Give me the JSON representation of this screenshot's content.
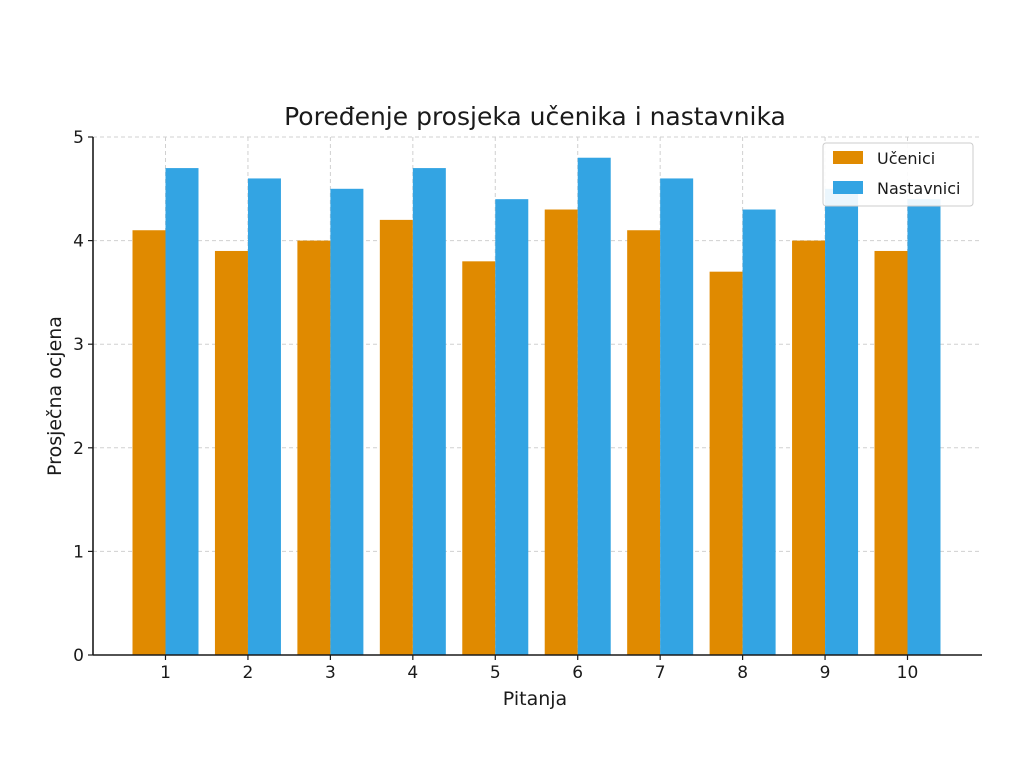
{
  "chart_data": {
    "type": "bar",
    "title": "Poređenje prosjeka učenika i nastavnika",
    "xlabel": "Pitanja",
    "ylabel": "Prosječna ocjena",
    "categories": [
      "1",
      "2",
      "3",
      "4",
      "5",
      "6",
      "7",
      "8",
      "9",
      "10"
    ],
    "series": [
      {
        "name": "Učenici",
        "color": "#E08A00",
        "values": [
          4.1,
          3.9,
          4.0,
          4.2,
          3.8,
          4.3,
          4.1,
          3.7,
          4.0,
          3.9
        ]
      },
      {
        "name": "Nastavnici",
        "color": "#33A4E3",
        "values": [
          4.7,
          4.6,
          4.5,
          4.7,
          4.4,
          4.8,
          4.6,
          4.3,
          4.5,
          4.4
        ]
      }
    ],
    "ylim": [
      0,
      5
    ],
    "yticks": [
      "0",
      "1",
      "2",
      "3",
      "4",
      "5"
    ],
    "grid": true,
    "legend_position": "top-right"
  }
}
